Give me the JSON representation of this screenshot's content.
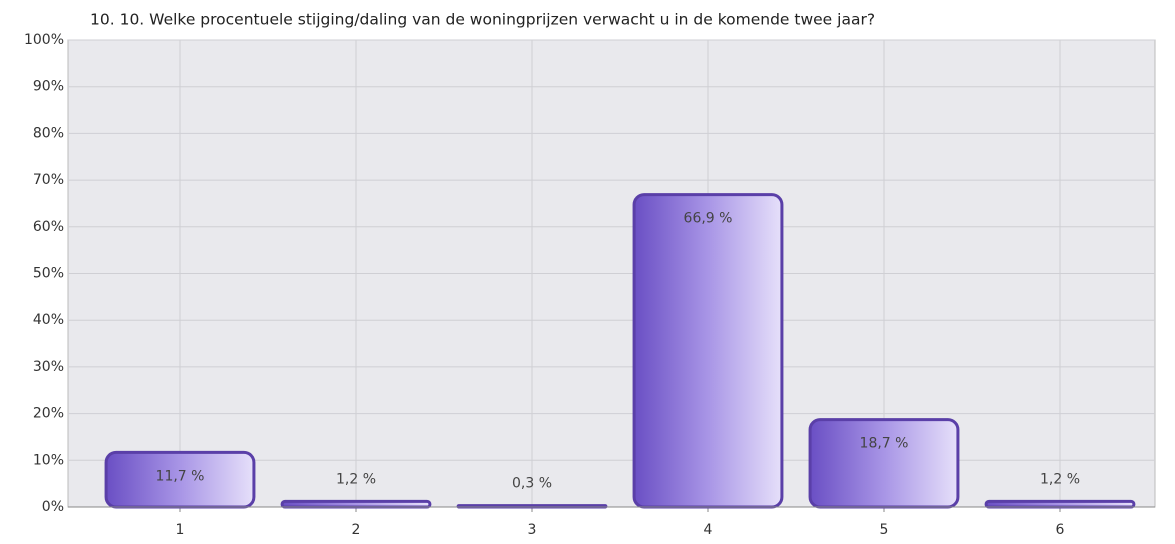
{
  "chart_data": {
    "type": "bar",
    "title": "10. 10. Welke procentuele stijging/daling van de woningprijzen verwacht u in de komende twee jaar?",
    "categories": [
      "1",
      "2",
      "3",
      "4",
      "5",
      "6"
    ],
    "values": [
      11.7,
      1.2,
      0.3,
      66.9,
      18.7,
      1.2
    ],
    "value_labels": [
      "11,7 %",
      "1,2 %",
      "0,3 %",
      "66,9 %",
      "18,7 %",
      "1,2 %"
    ],
    "color": "#7b62cc",
    "ylim": [
      0,
      100
    ],
    "yticks": [
      {
        "value": 0,
        "label": "0%"
      },
      {
        "value": 10,
        "label": "10%"
      },
      {
        "value": 20,
        "label": "20%"
      },
      {
        "value": 30,
        "label": "30%"
      },
      {
        "value": 40,
        "label": "40%"
      },
      {
        "value": 50,
        "label": "50%"
      },
      {
        "value": 60,
        "label": "60%"
      },
      {
        "value": 70,
        "label": "70%"
      },
      {
        "value": 80,
        "label": "80%"
      },
      {
        "value": 90,
        "label": "90%"
      },
      {
        "value": 100,
        "label": "100%"
      }
    ],
    "grid": true
  }
}
